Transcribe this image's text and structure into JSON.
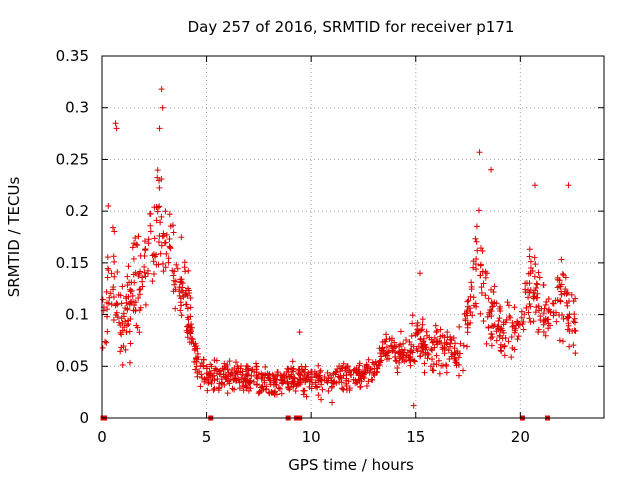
{
  "chart_data": {
    "type": "scatter",
    "title": "Day 257 of 2016, SRMTID for receiver p171",
    "xlabel": "GPS time / hours",
    "ylabel": "SRMTID / TECUs",
    "xlim": [
      0,
      24
    ],
    "ylim": [
      0,
      0.35
    ],
    "xticks": [
      0,
      5,
      10,
      15,
      20
    ],
    "xtick_labels": [
      "0",
      "5",
      "10",
      "15",
      "20"
    ],
    "yticks": [
      0,
      0.05,
      0.1,
      0.15,
      0.2,
      0.25,
      0.3,
      0.35
    ],
    "ytick_labels": [
      "0",
      "0.05",
      "0.1",
      "0.15",
      "0.2",
      "0.25",
      "0.3",
      "0.35"
    ],
    "grid": true,
    "marker": "+",
    "color": "#e00000",
    "zero_markers_x": [
      0.05,
      0.12,
      5.2,
      8.9,
      9.3,
      9.45,
      20.1,
      21.3
    ],
    "profile": [
      {
        "x": 0.0,
        "y": 0.09,
        "spread": 0.05
      },
      {
        "x": 0.3,
        "y": 0.12,
        "spread": 0.06
      },
      {
        "x": 0.6,
        "y": 0.13,
        "spread": 0.09
      },
      {
        "x": 1.0,
        "y": 0.09,
        "spread": 0.06
      },
      {
        "x": 1.5,
        "y": 0.12,
        "spread": 0.07
      },
      {
        "x": 2.0,
        "y": 0.14,
        "spread": 0.06
      },
      {
        "x": 2.5,
        "y": 0.17,
        "spread": 0.07
      },
      {
        "x": 2.8,
        "y": 0.2,
        "spread": 0.08
      },
      {
        "x": 3.1,
        "y": 0.16,
        "spread": 0.07
      },
      {
        "x": 3.5,
        "y": 0.13,
        "spread": 0.06
      },
      {
        "x": 4.0,
        "y": 0.12,
        "spread": 0.05
      },
      {
        "x": 4.3,
        "y": 0.08,
        "spread": 0.04
      },
      {
        "x": 4.6,
        "y": 0.05,
        "spread": 0.025
      },
      {
        "x": 5.0,
        "y": 0.04,
        "spread": 0.025
      },
      {
        "x": 6.0,
        "y": 0.04,
        "spread": 0.02
      },
      {
        "x": 7.0,
        "y": 0.04,
        "spread": 0.02
      },
      {
        "x": 8.0,
        "y": 0.035,
        "spread": 0.02
      },
      {
        "x": 9.0,
        "y": 0.04,
        "spread": 0.02
      },
      {
        "x": 10.0,
        "y": 0.035,
        "spread": 0.02
      },
      {
        "x": 11.0,
        "y": 0.035,
        "spread": 0.02
      },
      {
        "x": 12.0,
        "y": 0.04,
        "spread": 0.02
      },
      {
        "x": 13.0,
        "y": 0.045,
        "spread": 0.02
      },
      {
        "x": 13.5,
        "y": 0.07,
        "spread": 0.025
      },
      {
        "x": 14.0,
        "y": 0.065,
        "spread": 0.025
      },
      {
        "x": 14.5,
        "y": 0.065,
        "spread": 0.03
      },
      {
        "x": 15.0,
        "y": 0.075,
        "spread": 0.035
      },
      {
        "x": 16.0,
        "y": 0.065,
        "spread": 0.03
      },
      {
        "x": 17.0,
        "y": 0.06,
        "spread": 0.03
      },
      {
        "x": 17.5,
        "y": 0.09,
        "spread": 0.05
      },
      {
        "x": 18.0,
        "y": 0.16,
        "spread": 0.07
      },
      {
        "x": 18.3,
        "y": 0.12,
        "spread": 0.07
      },
      {
        "x": 18.7,
        "y": 0.09,
        "spread": 0.05
      },
      {
        "x": 19.5,
        "y": 0.08,
        "spread": 0.04
      },
      {
        "x": 20.0,
        "y": 0.08,
        "spread": 0.035
      },
      {
        "x": 20.5,
        "y": 0.14,
        "spread": 0.06
      },
      {
        "x": 21.0,
        "y": 0.1,
        "spread": 0.05
      },
      {
        "x": 21.5,
        "y": 0.1,
        "spread": 0.04
      },
      {
        "x": 22.0,
        "y": 0.12,
        "spread": 0.06
      },
      {
        "x": 22.5,
        "y": 0.09,
        "spread": 0.04
      },
      {
        "x": 22.7,
        "y": 0.08,
        "spread": 0.04
      }
    ],
    "sample_count": 1200,
    "peaks": [
      {
        "x": 0.65,
        "y": 0.285
      },
      {
        "x": 0.7,
        "y": 0.28
      },
      {
        "x": 2.85,
        "y": 0.318
      },
      {
        "x": 2.9,
        "y": 0.3
      },
      {
        "x": 2.75,
        "y": 0.28
      },
      {
        "x": 0.3,
        "y": 0.205
      },
      {
        "x": 18.05,
        "y": 0.257
      },
      {
        "x": 18.6,
        "y": 0.24
      },
      {
        "x": 20.7,
        "y": 0.225
      },
      {
        "x": 22.3,
        "y": 0.225
      },
      {
        "x": 15.2,
        "y": 0.14
      },
      {
        "x": 9.45,
        "y": 0.083
      },
      {
        "x": 14.9,
        "y": 0.012
      },
      {
        "x": 11.0,
        "y": 0.015
      }
    ]
  }
}
